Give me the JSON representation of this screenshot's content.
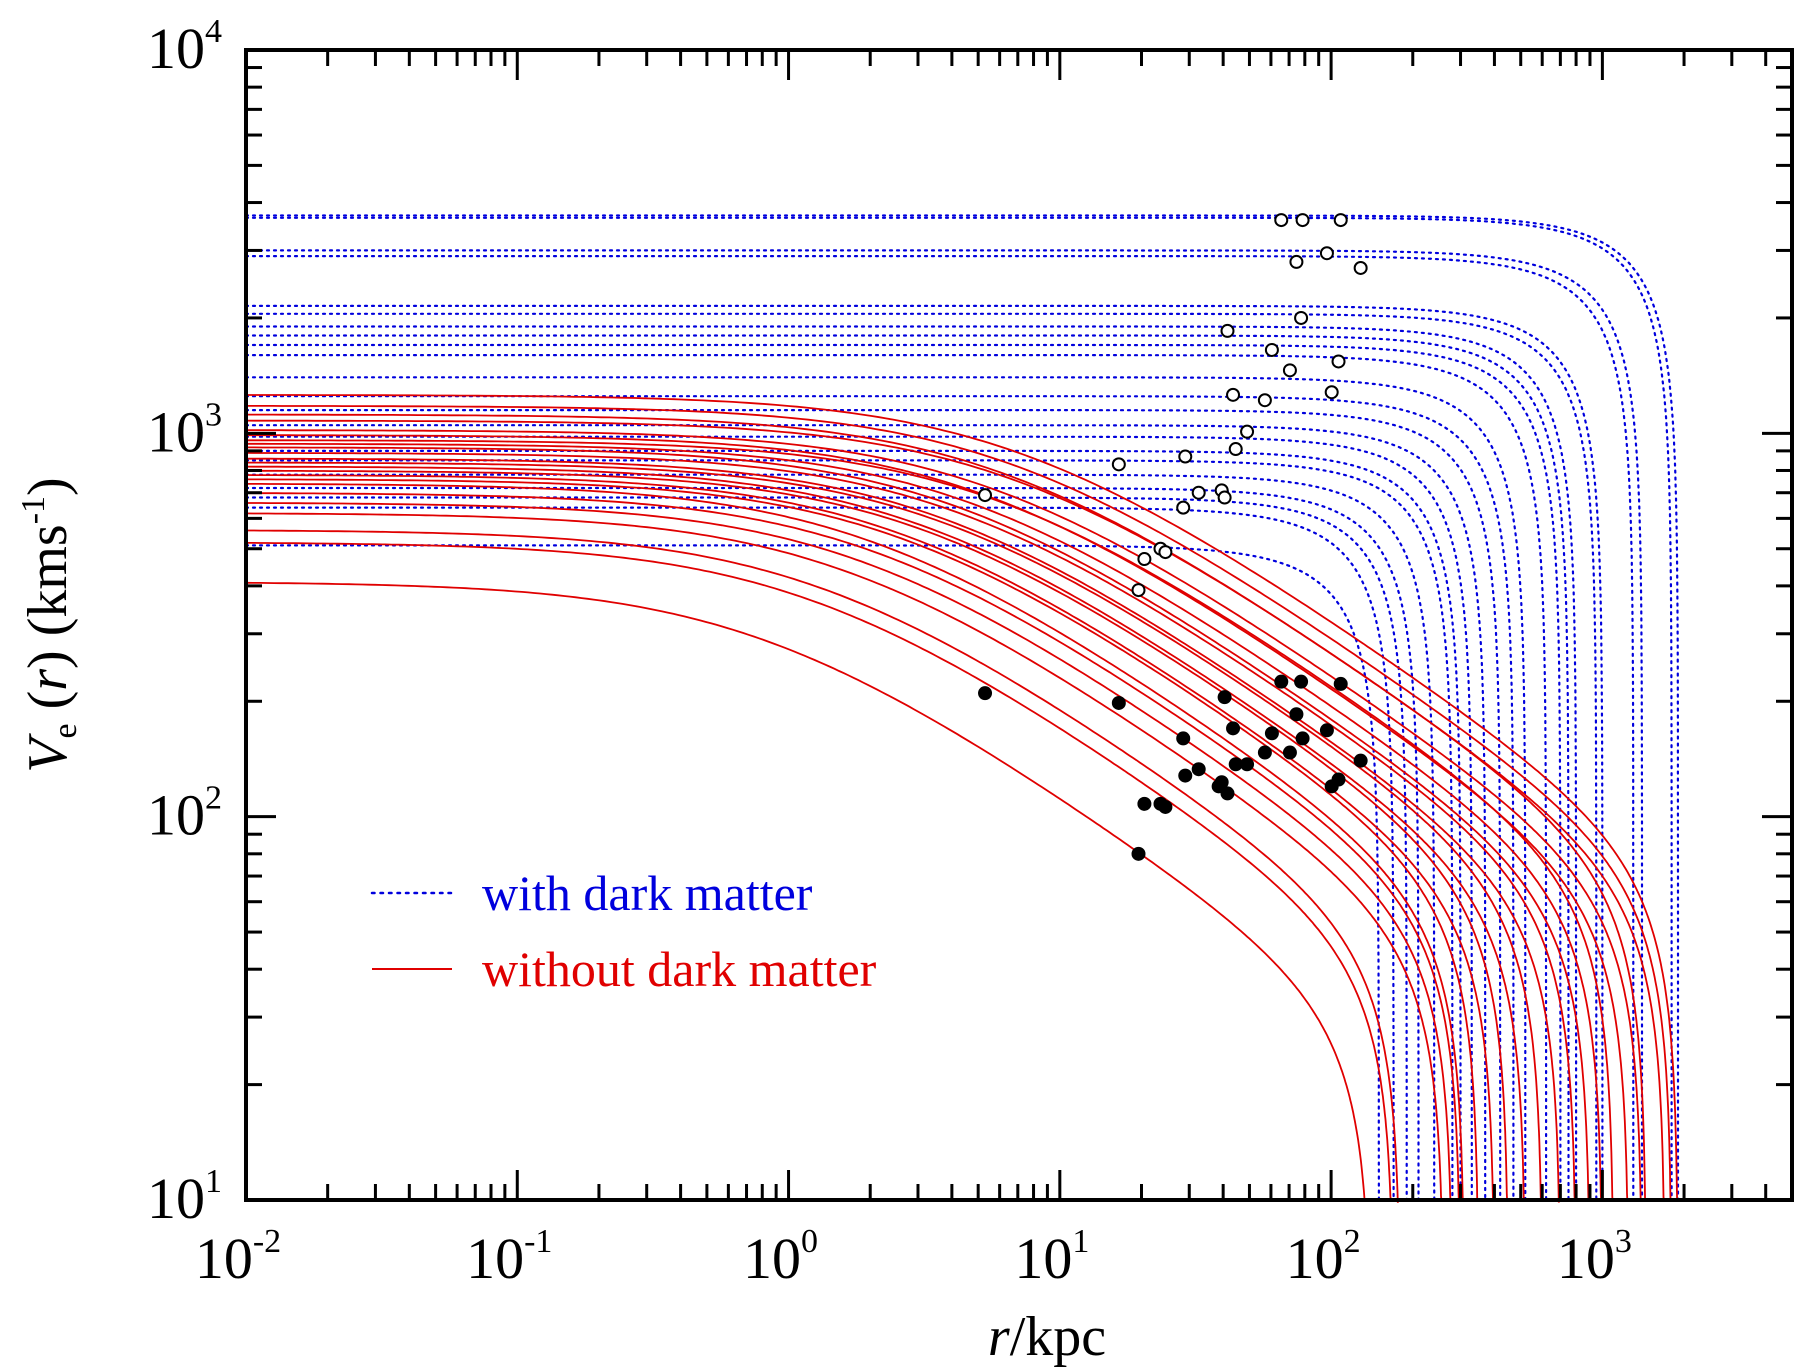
{
  "chart_data": {
    "type": "line",
    "title": "",
    "xlabel": {
      "symbol": "r",
      "separator": "/",
      "unit": "kpc"
    },
    "ylabel": {
      "symbol": "V",
      "subscript": "e",
      "arg_open": " (",
      "arg": "r",
      "arg_close": ")",
      "unit_open": " (kms",
      "unit_exp": "-1",
      "unit_close": ")"
    },
    "x_scale": "log",
    "y_scale": "log",
    "xlim": [
      0.01,
      5000
    ],
    "ylim": [
      10,
      10000
    ],
    "x_ticks": [
      {
        "base": "10",
        "exp": "-2",
        "value": 0.01
      },
      {
        "base": "10",
        "exp": "-1",
        "value": 0.1
      },
      {
        "base": "10",
        "exp": "0",
        "value": 1
      },
      {
        "base": "10",
        "exp": "1",
        "value": 10
      },
      {
        "base": "10",
        "exp": "2",
        "value": 100
      },
      {
        "base": "10",
        "exp": "3",
        "value": 1000
      }
    ],
    "y_ticks": [
      {
        "base": "10",
        "exp": "1",
        "value": 10
      },
      {
        "base": "10",
        "exp": "2",
        "value": 100
      },
      {
        "base": "10",
        "exp": "3",
        "value": 1000
      },
      {
        "base": "10",
        "exp": "4",
        "value": 10000
      }
    ],
    "legend": {
      "placement": "lower-left",
      "entries": [
        {
          "label": "with dark matter",
          "color": "#0000dd",
          "style": "dotted"
        },
        {
          "label": "without dark matter",
          "color": "#e00000",
          "style": "solid"
        }
      ]
    },
    "series": [
      {
        "name": "with dark matter",
        "style": "dotted",
        "color": "#0000dd",
        "curves": [
          {
            "v0": 3700,
            "rcut": 1900
          },
          {
            "v0": 3650,
            "rcut": 1800
          },
          {
            "v0": 3000,
            "rcut": 1400
          },
          {
            "v0": 2900,
            "rcut": 1300
          },
          {
            "v0": 2150,
            "rcut": 1000
          },
          {
            "v0": 2050,
            "rcut": 950
          },
          {
            "v0": 1900,
            "rcut": 800
          },
          {
            "v0": 1800,
            "rcut": 750
          },
          {
            "v0": 1700,
            "rcut": 700
          },
          {
            "v0": 1600,
            "rcut": 620
          },
          {
            "v0": 1400,
            "rcut": 520
          },
          {
            "v0": 1250,
            "rcut": 470
          },
          {
            "v0": 1150,
            "rcut": 420
          },
          {
            "v0": 1050,
            "rcut": 370
          },
          {
            "v0": 980,
            "rcut": 330
          },
          {
            "v0": 900,
            "rcut": 300
          },
          {
            "v0": 850,
            "rcut": 280
          },
          {
            "v0": 780,
            "rcut": 240
          },
          {
            "v0": 720,
            "rcut": 210
          },
          {
            "v0": 680,
            "rcut": 190
          },
          {
            "v0": 640,
            "rcut": 170
          },
          {
            "v0": 510,
            "rcut": 150
          }
        ]
      },
      {
        "name": "without dark matter",
        "style": "solid",
        "color": "#e00000",
        "curves": [
          {
            "v0": 1260,
            "rc": 7.0,
            "rcut": 1900
          },
          {
            "v0": 1180,
            "rc": 6.5,
            "rcut": 1800
          },
          {
            "v0": 1120,
            "rc": 6.0,
            "rcut": 1700
          },
          {
            "v0": 1080,
            "rc": 6.5,
            "rcut": 1450
          },
          {
            "v0": 1020,
            "rc": 5.5,
            "rcut": 1400
          },
          {
            "v0": 990,
            "rc": 5.0,
            "rcut": 1250
          },
          {
            "v0": 960,
            "rc": 5.5,
            "rcut": 1100
          },
          {
            "v0": 940,
            "rc": 4.5,
            "rcut": 1000
          },
          {
            "v0": 920,
            "rc": 4.0,
            "rcut": 900
          },
          {
            "v0": 890,
            "rc": 4.0,
            "rcut": 800
          },
          {
            "v0": 860,
            "rc": 3.5,
            "rcut": 700
          },
          {
            "v0": 840,
            "rc": 3.5,
            "rcut": 600
          },
          {
            "v0": 820,
            "rc": 3.0,
            "rcut": 520
          },
          {
            "v0": 800,
            "rc": 3.0,
            "rcut": 450
          },
          {
            "v0": 780,
            "rc": 2.5,
            "rcut": 400
          },
          {
            "v0": 760,
            "rc": 2.5,
            "rcut": 350
          },
          {
            "v0": 740,
            "rc": 2.0,
            "rcut": 310
          },
          {
            "v0": 700,
            "rc": 2.0,
            "rcut": 300
          },
          {
            "v0": 660,
            "rc": 1.8,
            "rcut": 280
          },
          {
            "v0": 620,
            "rc": 1.6,
            "rcut": 260
          },
          {
            "v0": 560,
            "rc": 1.3,
            "rcut": 180
          },
          {
            "v0": 520,
            "rc": 1.2,
            "rcut": 170
          },
          {
            "v0": 410,
            "rc": 0.8,
            "rcut": 140
          }
        ]
      }
    ],
    "points": {
      "open": [
        [
          5.3,
          690
        ],
        [
          16.5,
          830
        ],
        [
          19.5,
          390
        ],
        [
          20.5,
          470
        ],
        [
          23.5,
          500
        ],
        [
          24.5,
          490
        ],
        [
          28.5,
          640
        ],
        [
          29.0,
          870
        ],
        [
          32.5,
          700
        ],
        [
          39.5,
          710
        ],
        [
          40.5,
          680
        ],
        [
          41.5,
          1850
        ],
        [
          43.5,
          1260
        ],
        [
          44.5,
          910
        ],
        [
          49.0,
          1010
        ],
        [
          57.0,
          1220
        ],
        [
          60.5,
          1650
        ],
        [
          65.5,
          3600
        ],
        [
          70.5,
          1460
        ],
        [
          74.5,
          2800
        ],
        [
          77.5,
          2000
        ],
        [
          78.5,
          3600
        ],
        [
          96.5,
          2950
        ],
        [
          100.5,
          1280
        ],
        [
          106.5,
          1540
        ],
        [
          108.5,
          3600
        ],
        [
          128.5,
          2700
        ]
      ],
      "filled": [
        [
          5.3,
          210
        ],
        [
          16.5,
          198
        ],
        [
          19.5,
          80
        ],
        [
          20.5,
          108
        ],
        [
          23.5,
          108
        ],
        [
          24.5,
          106
        ],
        [
          28.5,
          160
        ],
        [
          29.0,
          128
        ],
        [
          32.5,
          133
        ],
        [
          38.5,
          120
        ],
        [
          39.5,
          123
        ],
        [
          40.5,
          205
        ],
        [
          41.5,
          115
        ],
        [
          43.5,
          170
        ],
        [
          44.5,
          137
        ],
        [
          49.0,
          137
        ],
        [
          57.0,
          147
        ],
        [
          60.5,
          165
        ],
        [
          65.5,
          225
        ],
        [
          70.5,
          147
        ],
        [
          74.5,
          185
        ],
        [
          77.5,
          225
        ],
        [
          78.5,
          160
        ],
        [
          96.5,
          168
        ],
        [
          100.5,
          120
        ],
        [
          106.5,
          125
        ],
        [
          108.5,
          222
        ],
        [
          128.5,
          140
        ]
      ]
    }
  }
}
